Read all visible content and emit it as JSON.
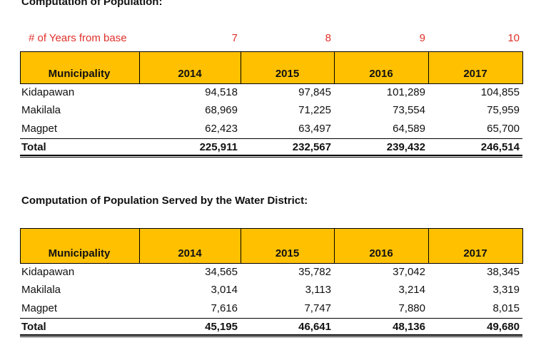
{
  "title1": "Computation of Population:",
  "years_row": {
    "label": "# of Years from base",
    "values": [
      7,
      8,
      9,
      10
    ]
  },
  "table1": {
    "header": [
      "Municipality",
      "2014",
      "2015",
      "2016",
      "2017"
    ],
    "rows": [
      [
        "Kidapawan",
        "94,518",
        "97,845",
        "101,289",
        "104,855"
      ],
      [
        "Makilala",
        "68,969",
        "71,225",
        "73,554",
        "75,959"
      ],
      [
        "Magpet",
        "62,423",
        "63,497",
        "64,589",
        "65,700"
      ]
    ],
    "total": [
      "Total",
      "225,911",
      "232,567",
      "239,432",
      "246,514"
    ]
  },
  "title2": "Computation of Population Served by the Water District:",
  "table2": {
    "header": [
      "Municipality",
      "2014",
      "2015",
      "2016",
      "2017"
    ],
    "rows": [
      [
        "Kidapawan",
        "34,565",
        "35,782",
        "37,042",
        "38,345"
      ],
      [
        "Makilala",
        "3,014",
        "3,113",
        "3,214",
        "3,319"
      ],
      [
        "Magpet",
        "7,616",
        "7,747",
        "7,880",
        "8,015"
      ]
    ],
    "total": [
      "Total",
      "45,195",
      "46,641",
      "48,136",
      "49,680"
    ]
  }
}
